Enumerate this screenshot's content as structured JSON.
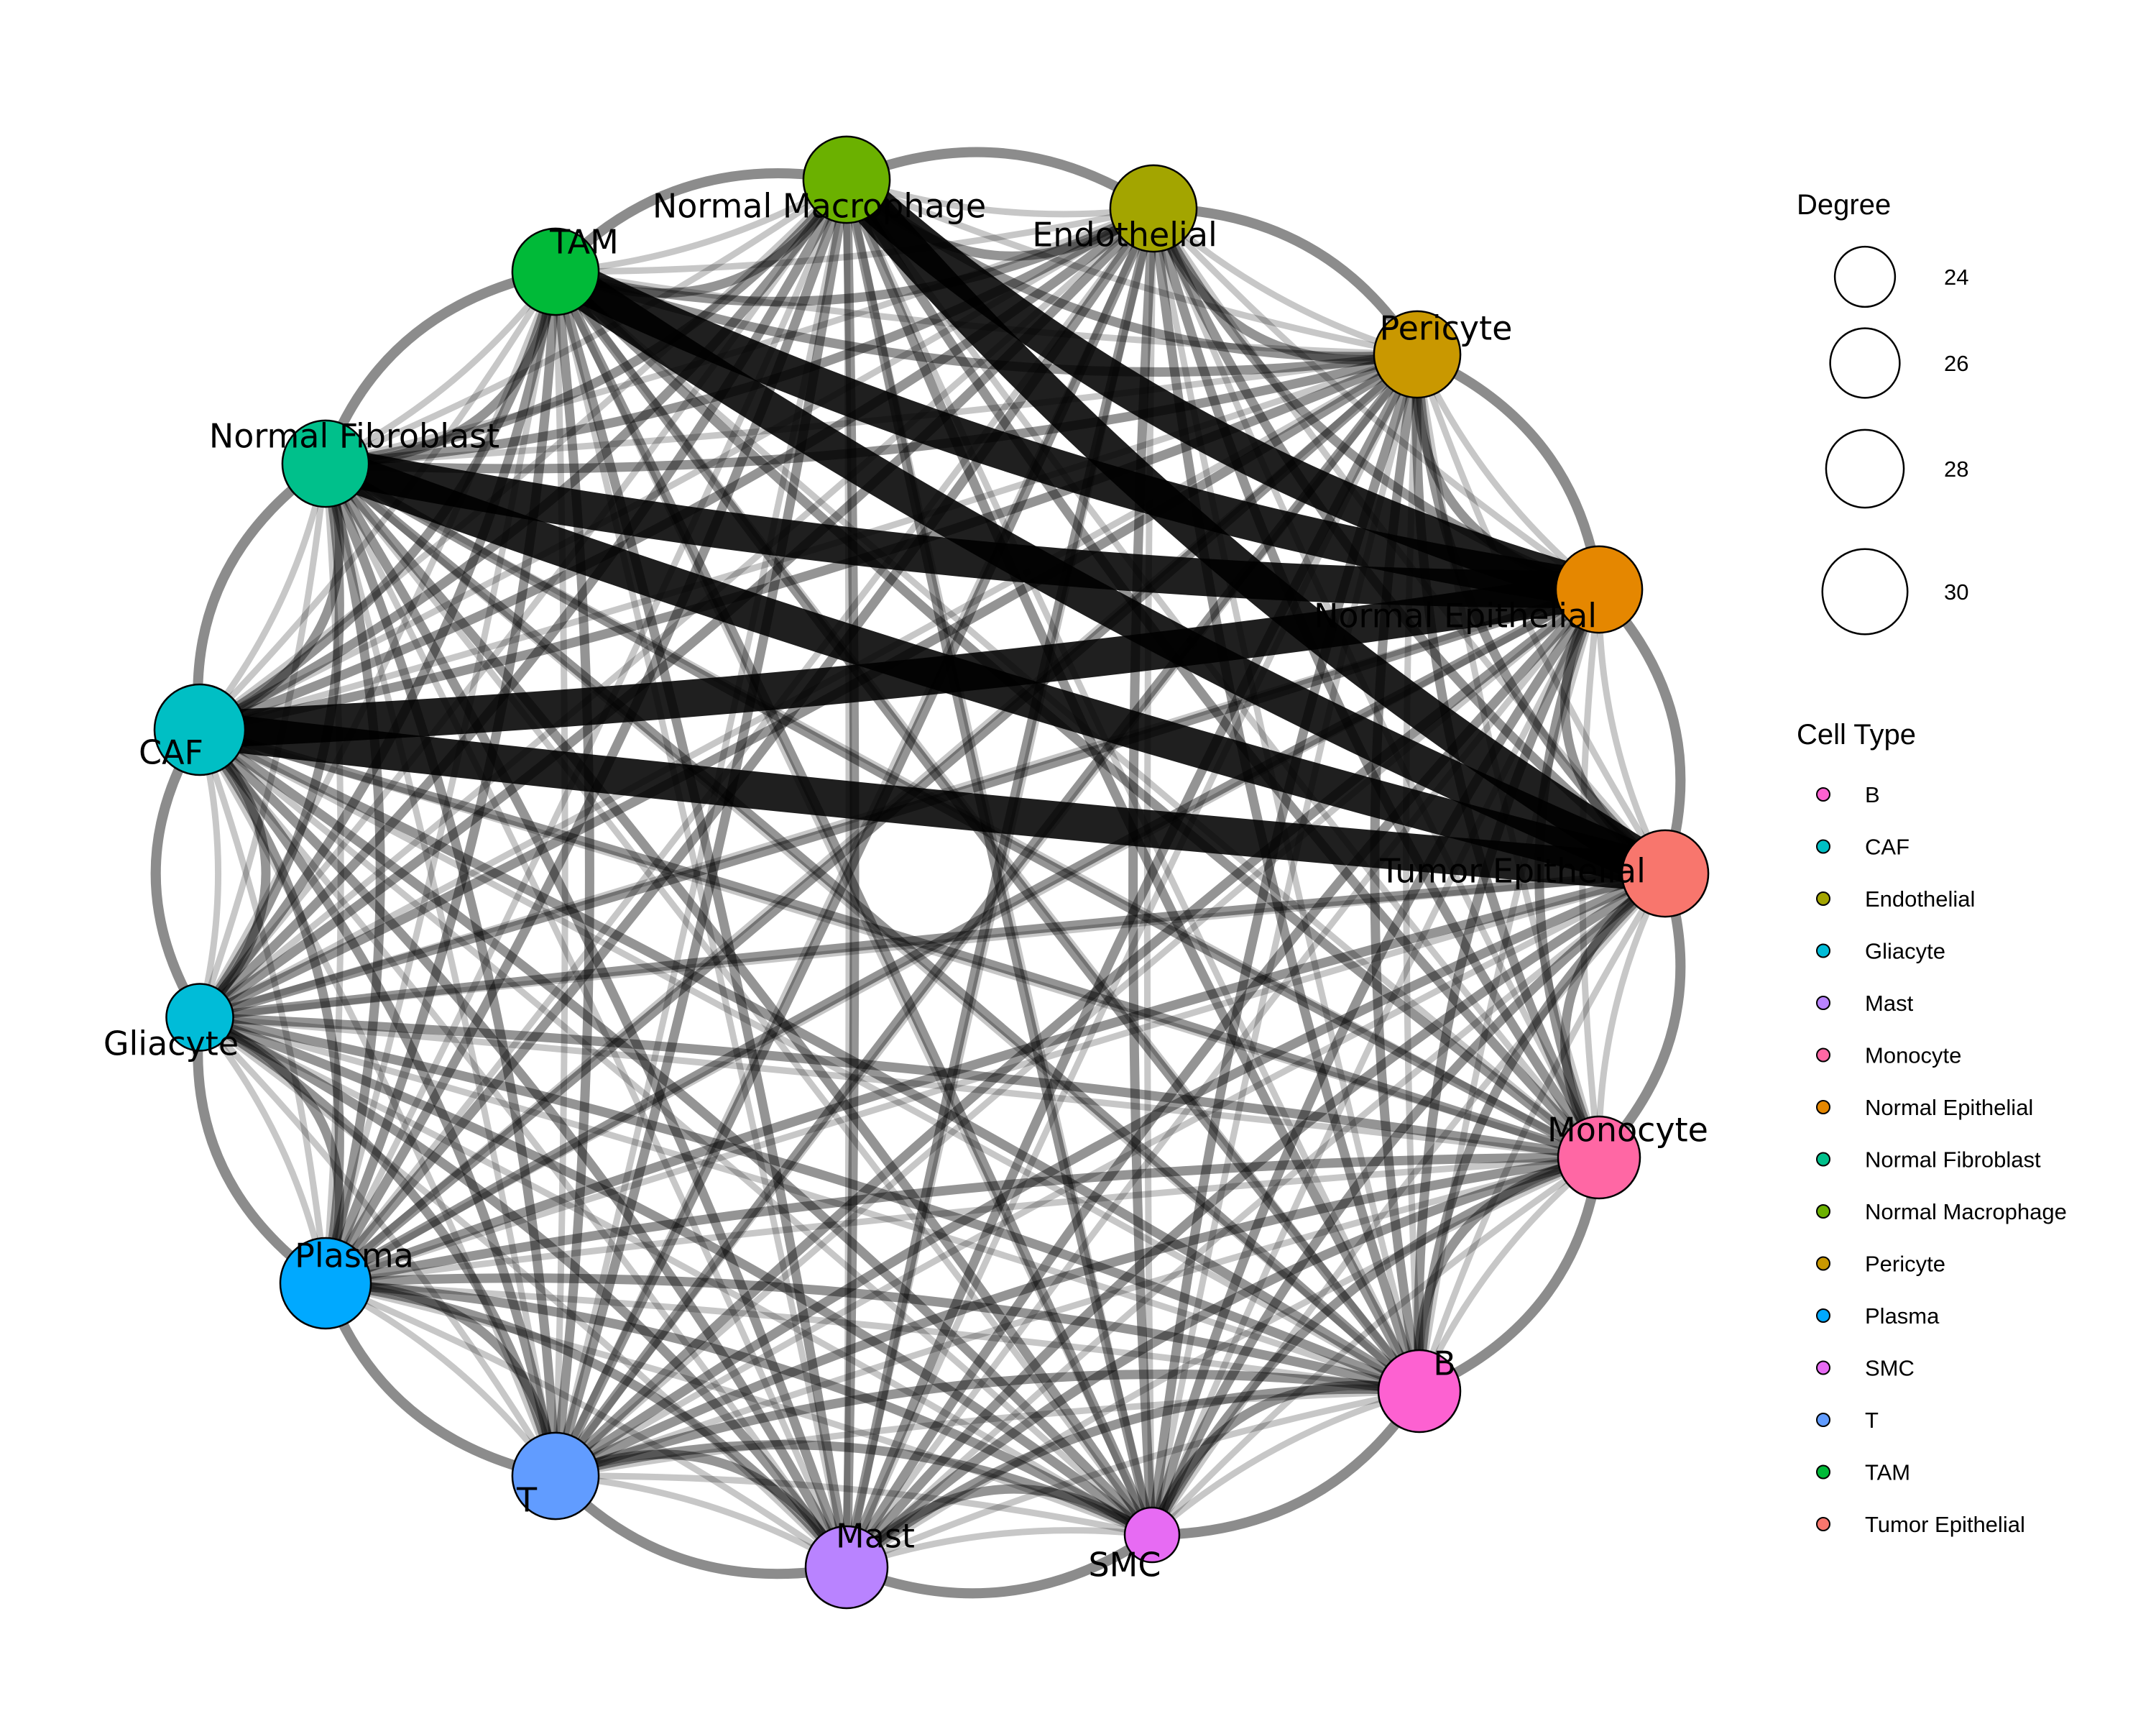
{
  "nodes": [
    {
      "id": "Normal Macrophage",
      "label": "Normal Macrophage",
      "color": "#6BB100",
      "degree": 28
    },
    {
      "id": "Endothelial",
      "label": "Endothelial",
      "color": "#A3A500",
      "degree": 28
    },
    {
      "id": "Pericyte",
      "label": "Pericyte",
      "color": "#C99800",
      "degree": 28
    },
    {
      "id": "Normal Epithelial",
      "label": "Normal Epithelial",
      "color": "#E58700",
      "degree": 28
    },
    {
      "id": "Tumor Epithelial",
      "label": "Tumor Epithelial",
      "color": "#F8766D",
      "degree": 28
    },
    {
      "id": "Monocyte",
      "label": "Monocyte",
      "color": "#FF67A4",
      "degree": 27
    },
    {
      "id": "B",
      "label": "B",
      "color": "#FD61D1",
      "degree": 27
    },
    {
      "id": "SMC",
      "label": "SMC",
      "color": "#E76BF3",
      "degree": 22
    },
    {
      "id": "Mast",
      "label": "Mast",
      "color": "#B983FF",
      "degree": 27
    },
    {
      "id": "T",
      "label": "T",
      "color": "#619CFF",
      "degree": 28
    },
    {
      "id": "Plasma",
      "label": "Plasma",
      "color": "#00A9FF",
      "degree": 29
    },
    {
      "id": "Gliacyte",
      "label": "Gliacyte",
      "color": "#00BCD8",
      "degree": 24
    },
    {
      "id": "CAF",
      "label": "CAF",
      "color": "#00BFC4",
      "degree": 29
    },
    {
      "id": "Normal Fibroblast",
      "label": "Normal Fibroblast",
      "color": "#00C08B",
      "degree": 28
    },
    {
      "id": "TAM",
      "label": "TAM",
      "color": "#00BA38",
      "degree": 28
    }
  ],
  "heavy_edges": [
    [
      "TAM",
      "Tumor Epithelial"
    ],
    [
      "Normal Macrophage",
      "Tumor Epithelial"
    ],
    [
      "CAF",
      "Tumor Epithelial"
    ],
    [
      "Normal Fibroblast",
      "Tumor Epithelial"
    ],
    [
      "Normal Fibroblast",
      "Normal Epithelial"
    ],
    [
      "TAM",
      "Normal Epithelial"
    ],
    [
      "Normal Macrophage",
      "Normal Epithelial"
    ],
    [
      "CAF",
      "Normal Epithelial"
    ]
  ],
  "legend": {
    "degree_title": "Degree",
    "degree_items": [
      {
        "label": "24",
        "value": 24
      },
      {
        "label": "26",
        "value": 26
      },
      {
        "label": "28",
        "value": 28
      },
      {
        "label": "30",
        "value": 30
      }
    ],
    "celltype_title": "Cell Type",
    "celltype_items": [
      {
        "label": "B",
        "color": "#FD61D1"
      },
      {
        "label": "CAF",
        "color": "#00BFC4"
      },
      {
        "label": "Endothelial",
        "color": "#A3A500"
      },
      {
        "label": "Gliacyte",
        "color": "#00BCD8"
      },
      {
        "label": "Mast",
        "color": "#B983FF"
      },
      {
        "label": "Monocyte",
        "color": "#FF67A4"
      },
      {
        "label": "Normal Epithelial",
        "color": "#E58700"
      },
      {
        "label": "Normal Fibroblast",
        "color": "#00C08B"
      },
      {
        "label": "Normal Macrophage",
        "color": "#6BB100"
      },
      {
        "label": "Pericyte",
        "color": "#C99800"
      },
      {
        "label": "Plasma",
        "color": "#00A9FF"
      },
      {
        "label": "SMC",
        "color": "#E76BF3"
      },
      {
        "label": "T",
        "color": "#619CFF"
      },
      {
        "label": "TAM",
        "color": "#00BA38"
      },
      {
        "label": "Tumor Epithelial",
        "color": "#F8766D"
      }
    ]
  }
}
